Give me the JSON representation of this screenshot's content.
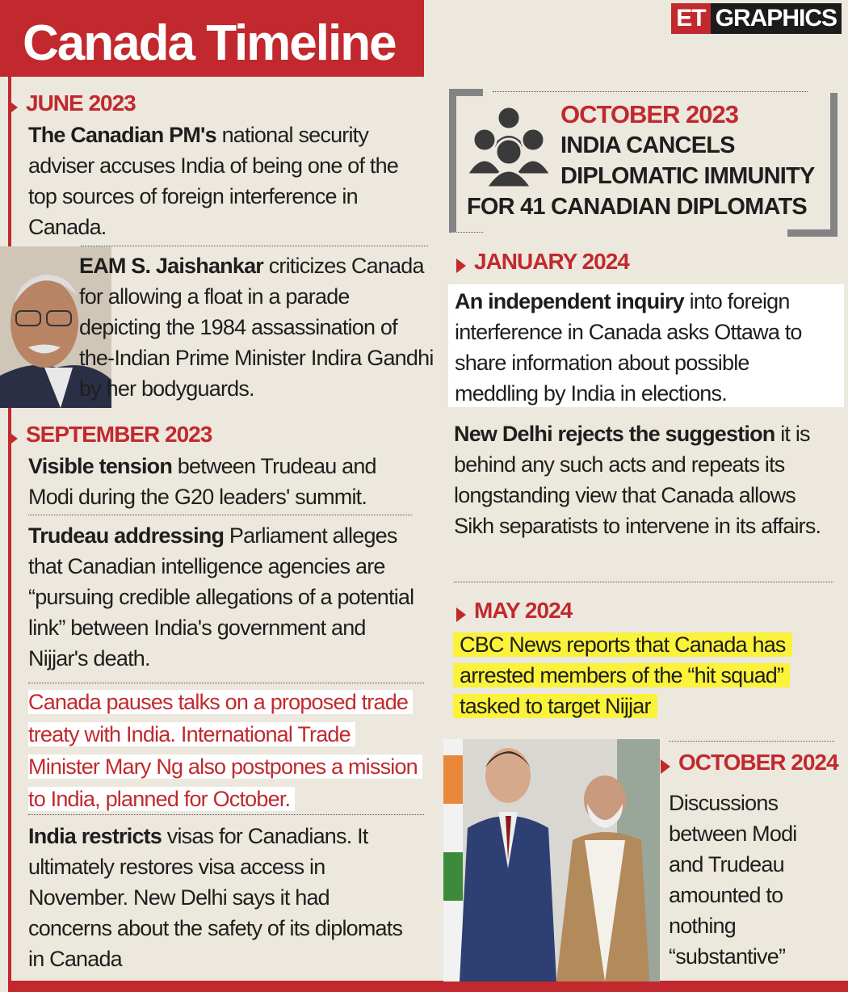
{
  "header": {
    "title": "Canada Timeline",
    "brand_et": "ET",
    "brand_graphics": "GRAPHICS"
  },
  "colors": {
    "accent": "#c1292e",
    "background": "#ece8dd",
    "highlight": "#fbf23a",
    "box_gray": "#838385"
  },
  "left": {
    "june2023": {
      "date": "JUNE 2023",
      "bold": "The Canadian PM's",
      "text": " national security adviser accuses India of being one of the top sources of foreign interference in Canada."
    },
    "jaishankar": {
      "bold": "EAM S. Jaishankar",
      "text": " criticizes Canada for allowing a float in a parade depicting the 1984 assassination of the-Indian Prime Minister Indira Gandhi by her bodyguards."
    },
    "sep2023": {
      "date": "SEPTEMBER 2023",
      "items": [
        {
          "bold": "Visible tension",
          "text": " between Trudeau and Modi during the G20 leaders' summit."
        },
        {
          "bold": "Trudeau addressing",
          "text": " Parliament alleges that Canadian intelligence agencies are “pursuing credible allegations of a potential link” between India's government and Nijjar's death."
        }
      ],
      "red_text": "Canada pauses talks on a proposed trade treaty with India. International Trade Minister Mary Ng also postpones a mission to India, planned for October.",
      "visas": {
        "bold": "India restricts",
        "text": " visas for Canadians. It ultimately restores visa access in November. New Delhi says it had concerns about the safety of its diplomats in Canada"
      }
    }
  },
  "right": {
    "oct2023": {
      "date": "OCTOBER 2023",
      "line1": "INDIA CANCELS",
      "line2": "DIPLOMATIC IMMUNITY",
      "line3": "FOR 41 CANADIAN DIPLOMATS",
      "icon": "group-people-icon"
    },
    "jan2024": {
      "date": "JANUARY 2024",
      "p1": {
        "bold": "An independent inquiry",
        "text": " into foreign interference in Canada asks Ottawa to share information about possible meddling by India in elections."
      },
      "p2": {
        "bold": "New Delhi rejects the suggestion",
        "text": " it is behind any such acts and repeats its longstanding view that Canada allows Sikh separatists to intervene in its affairs."
      }
    },
    "may2024": {
      "date": "MAY 2024",
      "text": "CBC News reports that Canada has arrested members of the “hit squad” tasked to target Nijjar"
    },
    "oct2024": {
      "date": "OCTOBER 2024",
      "text": "Discussions between Modi and Trudeau amounted to nothing “substantive”"
    }
  }
}
